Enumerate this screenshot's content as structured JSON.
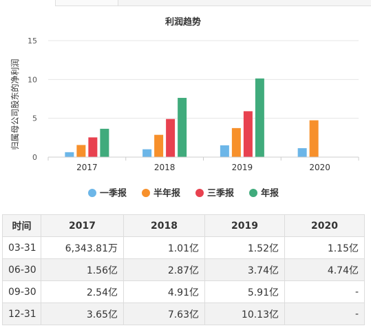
{
  "chart_data": {
    "type": "bar",
    "title": "利润趋势",
    "ylabel": "归属母公司股东的净利润",
    "ylim": [
      0,
      15
    ],
    "yticks": [
      0,
      5,
      10,
      15
    ],
    "categories": [
      "2017",
      "2018",
      "2019",
      "2020"
    ],
    "series": [
      {
        "name": "一季报",
        "color": "#6cb6e8",
        "values": [
          0.6344,
          1.01,
          1.52,
          1.15
        ]
      },
      {
        "name": "半年报",
        "color": "#f7902b",
        "values": [
          1.56,
          2.87,
          3.74,
          4.74
        ]
      },
      {
        "name": "三季报",
        "color": "#e8414f",
        "values": [
          2.54,
          4.91,
          5.91,
          null
        ]
      },
      {
        "name": "年报",
        "color": "#40ab7c",
        "values": [
          3.65,
          7.63,
          10.13,
          null
        ]
      }
    ],
    "legend_position": "bottom",
    "grid": true
  },
  "table": {
    "headers": [
      "时间",
      "2017",
      "2018",
      "2019",
      "2020"
    ],
    "rows": [
      [
        "03-31",
        "6,343.81万",
        "1.01亿",
        "1.52亿",
        "1.15亿"
      ],
      [
        "06-30",
        "1.56亿",
        "2.87亿",
        "3.74亿",
        "4.74亿"
      ],
      [
        "09-30",
        "2.54亿",
        "4.91亿",
        "5.91亿",
        "-"
      ],
      [
        "12-31",
        "3.65亿",
        "7.63亿",
        "10.13亿",
        "-"
      ]
    ]
  }
}
